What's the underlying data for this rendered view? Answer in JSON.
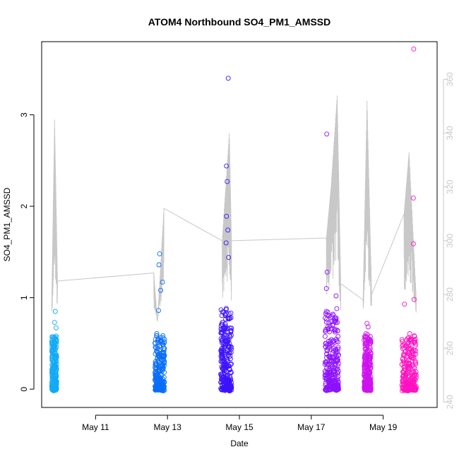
{
  "chart_data": {
    "type": "scatter",
    "title": "ATOM4 Northbound SO4_PM1_AMSSD",
    "xlabel": "Date",
    "ylabel": "SO4_PM1_AMSSD",
    "x_ticks": [
      "May 11",
      "May 13",
      "May 15",
      "May 17",
      "May 19"
    ],
    "x_tick_days": [
      11,
      13,
      15,
      17,
      19
    ],
    "xlim_days": [
      9.5,
      20.5
    ],
    "ylim": [
      -0.2,
      3.8
    ],
    "y_ticks": [
      0,
      1,
      2,
      3
    ],
    "y2_ticks": [
      240,
      260,
      280,
      300,
      320,
      340,
      360
    ],
    "y2lim": [
      238,
      374
    ],
    "grid": false,
    "legend": "none",
    "series_color_gradient": [
      "#00aaff",
      "#0066ff",
      "#3300ff",
      "#8800ff",
      "#cc00ff",
      "#ff00aa"
    ],
    "secondary_line_color": "#c8c8c8",
    "flight_segments": [
      {
        "start_day": 9.78,
        "end_day": 9.92,
        "color": "#12aaf6",
        "max_y": 0.86,
        "outliers": [
          [
            9.88,
            0.85
          ],
          [
            9.86,
            0.73
          ],
          [
            9.9,
            0.67
          ]
        ]
      },
      {
        "start_day": 12.65,
        "end_day": 12.92,
        "color": "#0a6ef9",
        "max_y": 1.48,
        "outliers": [
          [
            12.78,
            1.48
          ],
          [
            12.76,
            1.36
          ],
          [
            12.86,
            1.17
          ],
          [
            12.81,
            1.08
          ],
          [
            12.75,
            0.86
          ]
        ]
      },
      {
        "start_day": 14.48,
        "end_day": 14.78,
        "color": "#3c12ff",
        "max_y": 3.4,
        "outliers": [
          [
            14.69,
            3.4
          ],
          [
            14.64,
            2.44
          ],
          [
            14.66,
            2.27
          ],
          [
            14.64,
            1.89
          ],
          [
            14.68,
            1.74
          ],
          [
            14.63,
            1.6
          ],
          [
            14.7,
            1.44
          ]
        ]
      },
      {
        "start_day": 17.38,
        "end_day": 17.76,
        "color": "#8d12ff",
        "max_y": 2.8,
        "outliers": [
          [
            17.43,
            2.79
          ],
          [
            17.44,
            1.28
          ],
          [
            17.42,
            1.1
          ],
          [
            17.69,
            1.02
          ]
        ]
      },
      {
        "start_day": 18.47,
        "end_day": 18.66,
        "color": "#cf12f0",
        "max_y": 0.72,
        "outliers": [
          [
            18.55,
            0.72
          ],
          [
            18.58,
            0.68
          ]
        ]
      },
      {
        "start_day": 19.52,
        "end_day": 19.92,
        "color": "#ff12c0",
        "max_y": 3.72,
        "outliers": [
          [
            19.85,
            3.72
          ],
          [
            19.84,
            2.09
          ],
          [
            19.84,
            1.59
          ],
          [
            19.59,
            0.93
          ],
          [
            19.86,
            0.98
          ]
        ]
      }
    ],
    "secondary_line_days": [
      9.78,
      9.86,
      9.94,
      12.62,
      12.72,
      12.9,
      14.52,
      14.72,
      14.78,
      17.42,
      17.55,
      17.72,
      17.82,
      18.44,
      18.55,
      18.68,
      19.58,
      19.72,
      19.92
    ],
    "secondary_line_values": [
      278,
      345,
      285,
      288,
      270,
      312,
      300,
      340,
      300,
      301,
      320,
      354,
      284,
      278,
      352,
      280,
      310,
      333,
      279
    ]
  }
}
